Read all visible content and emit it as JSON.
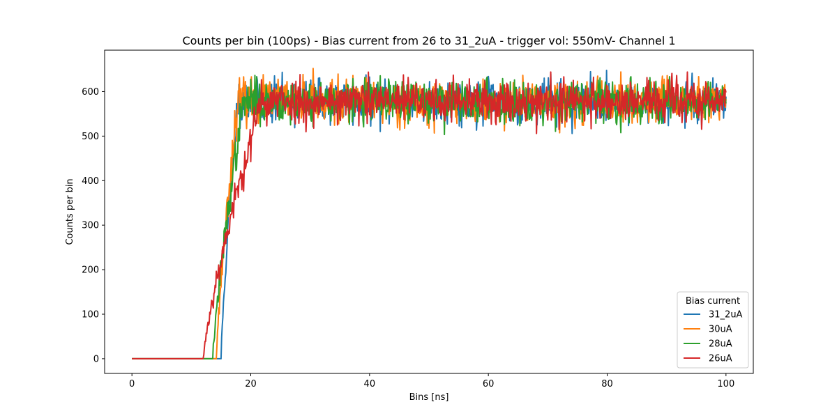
{
  "chart_data": {
    "type": "line",
    "title": "Counts per bin (100ps) - Bias current from 26 to 31_2uA - trigger vol: 550mV- Channel 1",
    "xlabel": "Bins [ns]",
    "ylabel": "Counts per bin",
    "xlim": [
      -4.6,
      104.6
    ],
    "ylim": [
      -33,
      693
    ],
    "xticks": [
      0,
      20,
      40,
      60,
      80,
      100
    ],
    "yticks": [
      0,
      100,
      200,
      300,
      400,
      500,
      600
    ],
    "grid": false,
    "legend": {
      "title": "Bias current",
      "placement": "lower-right"
    },
    "bin_width_ns": 0.1,
    "series": [
      {
        "name": "31_2uA",
        "color": "#1f77b4",
        "onset_ns": 15.0,
        "rise_ns": 2.8,
        "plateau": 578,
        "noise": 24,
        "seed": 11
      },
      {
        "name": "30uA",
        "color": "#ff7f0e",
        "onset_ns": 14.2,
        "rise_ns": 3.6,
        "plateau": 578,
        "noise": 24,
        "seed": 23
      },
      {
        "name": "28uA",
        "color": "#2ca02c",
        "onset_ns": 13.6,
        "rise_ns": 5.2,
        "plateau": 578,
        "noise": 24,
        "seed": 37
      },
      {
        "name": "26uA",
        "color": "#d62728",
        "onset_ns": 12.0,
        "rise_ns": 9.8,
        "plateau": 578,
        "noise": 24,
        "seed": 53
      }
    ]
  }
}
